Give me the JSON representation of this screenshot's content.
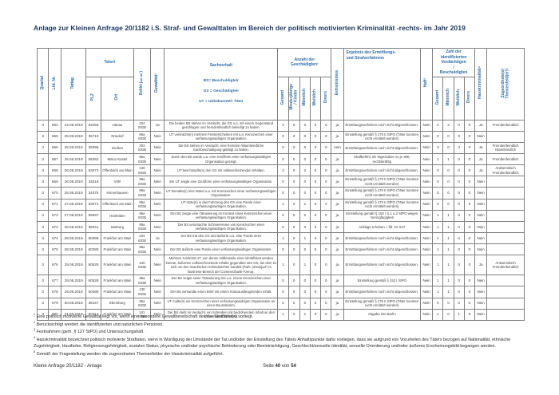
{
  "page": {
    "title": "Anlage zur Kleinen Anfrage 20/1182 i.S. Straf- und Gewalttaten im Bereich der politisch motivierten Kriminalität -rechts- im Jahr 2019",
    "footer": {
      "left": "Kleine Anfrage 20/1182 - Anlage",
      "seite": "Seite",
      "num": "40",
      "von": "von",
      "total": "54"
    }
  },
  "colors": {
    "header_blue": "#2e6da8",
    "title_navy": "#1f3864",
    "body_text": "#3a3a3a",
    "border_gray": "#7f7f7f"
  },
  "table": {
    "headers": {
      "quartal": "Quartal",
      "lfd_nr": "Lfd. Nr.",
      "tattag": "Tattag",
      "tatort": "Tatort",
      "plz": "PLZ",
      "ort": "Ort",
      "delikt": "Delikt (§§)",
      "gewalttat": "Gewalttat¹",
      "sachverhalt": "Sachverhalt",
      "sachverhalt_legend": [
        "BS= Beschuldigte/r",
        "GS = Geschädigte/r",
        "UT = Unbekannte/r Täter"
      ],
      "geschaedigte": "Anzahl der\nGeschädigten²",
      "g_gesamt": "Gesamt",
      "g_minder": "Minderjährige\n/ Kinder",
      "g_maennlich": "Männlich",
      "g_weiblich": "Weiblich",
      "g_divers": "Divers",
      "extremismus": "Extremismus",
      "ergebnis": "Ergebnis des Ermittlungs-\nund Strafverfahrens",
      "haft": "Haft³",
      "verdaechtige": "Zahl der\nidentifizierten\nVerdächtigen\n/\nBeschuldigten",
      "v_gesamt": "Gesamt",
      "v_maennlich": "Männlich",
      "v_weiblich": "Weiblich",
      "v_divers": "Divers",
      "hasskrim": "Hasskriminalität⁴",
      "themenfeld": "Zugeordnete(s)\nThemenfeld(er)⁵"
    },
    "rows": [
      [
        "3",
        "664",
        "24.08.2019",
        "63456",
        "Hanau",
        "224 StGB",
        "Ja",
        "Die beiden BS stehen im Verdacht, die GS u.a. mit einem Gegenstand geschlagen und fremdenfeindlich beleidigt zu haben.",
        "2",
        "0",
        "2",
        "0",
        "0",
        "ja",
        "Ermittlungsverfahren noch nicht abgeschlossen.",
        "Nein",
        "2",
        "2",
        "0",
        "0",
        "Ja",
        "Fremdenfeindlich"
      ],
      [
        "3",
        "665",
        "25.08.2019",
        "35719",
        "Driedorf",
        "86a StGB",
        "Nein",
        "UT verkratzte(n) mehrere Fensterscheiben mit u.a. Kennzeichen einer verfassungswidrigen Organisation.",
        "0",
        "0",
        "0",
        "0",
        "0",
        "ja",
        "Einstellung gemäß § 170 II StPO (Täter konnten nicht ermittelt werden)",
        "Nein",
        "0",
        "0",
        "0",
        "0",
        "Nein",
        ""
      ],
      [
        "3",
        "666",
        "25.08.2019",
        "35396",
        "Gießen",
        "303 StGB",
        "Nein",
        "Die BS stehen im Verdacht, eine fremden-/islamfeindliche Sachbeschädigung getätigt zu haben.",
        "0",
        "0",
        "0",
        "0",
        "0",
        "nein",
        "Ermittlungsverfahren noch nicht abgeschlossen.",
        "Nein",
        "3",
        "0",
        "3",
        "0",
        "Ja",
        "Fremdenfeindlich\nIslamfeindlich"
      ],
      [
        "3",
        "667",
        "25.08.2019",
        "55252",
        "Mainz-Kastel",
        "86a StGB",
        "Nein",
        "Durch den BS wurde u.a. eine Grußform einer verfassungswidrigen Organisation gezeigt.",
        "0",
        "0",
        "0",
        "0",
        "0",
        "ja",
        "Strafbefehl, 60 Tagessätze zu je 30€, rechtskräftig",
        "Nein",
        "1",
        "1",
        "0",
        "0",
        "Ja",
        "Fremdenfeindlich"
      ],
      [
        "3",
        "668",
        "26.08.2019",
        "63073",
        "Offenbach am Main",
        "130 StGB",
        "Nein",
        "UT beschimpfte(n) den GS mit volksverhetzenden Inhalten.",
        "2",
        "0",
        "2",
        "0",
        "0",
        "ja",
        "Ermittlungsverfahren noch nicht abgeschlossen.",
        "Nein",
        "0",
        "0",
        "0",
        "0",
        "Ja",
        "Antisemitisch\nFremdenfeindlich"
      ],
      [
        "3",
        "669",
        "26.08.2019",
        "34516",
        "Vöhl",
        "86a StGB",
        "Nein",
        "Ein UT zeigte eine Grußform einer verfassungswidrigen Organisation.",
        "0",
        "0",
        "0",
        "0",
        "0",
        "ja",
        "Einstellung gemäß § 170 II StPO (Täter konnten nicht ermittelt werden)",
        "Nein",
        "0",
        "0",
        "0",
        "0",
        "Nein",
        ""
      ],
      [
        "3",
        "670",
        "26.08.2019",
        "34376",
        "Immenhausen",
        "86a StGB",
        "Nein",
        "UT bemalte(n) eine Wand u.a. mit Kennzeichen einer verfassungswidrigen Organisation.",
        "0",
        "0",
        "0",
        "0",
        "0",
        "ja",
        "Einstellung gemäß § 170 II StPO (Täter konnten nicht ermittelt werden)",
        "Nein",
        "0",
        "0",
        "0",
        "0",
        "Nein",
        ""
      ],
      [
        "3",
        "671",
        "27.08.2019",
        "63071",
        "Offenbach am Main",
        "86a StGB",
        "Nein",
        "UT ritzte(n) in das Fahrzeug des GS eine Parole einer verfassungswidrigen Organisation.",
        "1",
        "0",
        "1",
        "0",
        "0",
        "ja",
        "Einstellung gemäß § 170 II StPO (Täter konnten nicht ermittelt werden)",
        "Nein",
        "0",
        "0",
        "0",
        "0",
        "Nein",
        ""
      ],
      [
        "3",
        "672",
        "27.08.2019",
        "65597",
        "Hünfelden",
        "86a StGB",
        "Nein",
        "Der BS zeigte eine Tätowierung im Kontext eines Kennzeichen einer verfassungswidrigen Organisation.",
        "0",
        "0",
        "0",
        "0",
        "0",
        "ja",
        "Einstellung gemäß § 153 I S.1 u.2 StPO wegen Geringfügigkeit",
        "Nein",
        "1",
        "1",
        "0",
        "0",
        "Nein",
        ""
      ],
      [
        "3",
        "673",
        "28.08.2019",
        "35041",
        "Marburg",
        "86a StGB",
        "Nein",
        "Der BS verursachte Schmierereien von Kennzeichen einer verfassungswidrigen Organisation.",
        "0",
        "0",
        "0",
        "0",
        "0",
        "ja",
        "Anklage erhoben + lfd. Nr. 647",
        "Nein",
        "1",
        "1",
        "0",
        "0",
        "Nein",
        ""
      ],
      [
        "3",
        "674",
        "28.08.2019",
        "60385",
        "Frankfurt am Main",
        "224 StGB",
        "Ja",
        "Der BS trat den GS und äußerte u.a. eine Parole einer verfassungswidrigen Organisation.",
        "1",
        "0",
        "1",
        "0",
        "0",
        "ja",
        "Ermittlungsverfahren noch nicht abgeschlossen.",
        "Nein",
        "1",
        "1",
        "0",
        "0",
        "Nein",
        ""
      ],
      [
        "3",
        "675",
        "28.08.2019",
        "60385",
        "Frankfurt am Main",
        "86a StGB",
        "Nein",
        "Der BS äußerte eine Parole einer verfassungswidrigen Organisation.",
        "0",
        "0",
        "0",
        "0",
        "0",
        "ja",
        "Ermittlungsverfahren noch nicht abgeschlossen.",
        "Nein",
        "1",
        "1",
        "0",
        "0",
        "Nein",
        ""
      ],
      [
        "3",
        "676",
        "29.08.2019",
        "60528",
        "Frankfurt am Main",
        "130 StGB",
        "Nein",
        "Mehrere zunächst UT, von denen mittlerweile einer identifiziert werden konnte, äußerten volksverhetzende Inhalte gegenüber den GS, bei dem es sich um den israelischen Schiedsrichter handelt (Rufe „Dreckjud“ im Business-Bereich der Commerzbank-Arena).",
        "1",
        "0",
        "1",
        "0",
        "0",
        "ja",
        "Ermittlungsverfahren noch nicht abgeschlossen.",
        "Nein",
        "1",
        "1",
        "0",
        "0",
        "Ja",
        "Antisemitisch\nFremdenfeindlich"
      ],
      [
        "3",
        "677",
        "29.08.2019",
        "60528",
        "Frankfurt am Main",
        "86a StGB",
        "Nein",
        "Der BS zeigte seine Tätowierung mit u.a. einem Kennzeichen einer verfassungswidrigen Organisation.",
        "0",
        "0",
        "0",
        "0",
        "0",
        "ja",
        "Einstellung gemäß § 153 I StPO",
        "Nein",
        "1",
        "1",
        "0",
        "0",
        "Nein",
        ""
      ],
      [
        "3",
        "678",
        "29.08.2019",
        "60489",
        "Frankfurt am Main",
        "130 StGB",
        "Nein",
        "Der BS versandte einen Brief mit einem holocaustleugnenden Inhalt.",
        "0",
        "0",
        "0",
        "0",
        "0",
        "ja",
        "Ermittlungsverfahren noch nicht abgeschlossen.",
        "Nein",
        "1",
        "1",
        "0",
        "0",
        "Nein",
        ""
      ],
      [
        "3",
        "679",
        "30.08.2019",
        "36157",
        "Ebersburg",
        "86a StGB",
        "Nein",
        "UT malte(n) ein Kennzeichen einer verfassungswidrigen Organisation an einen Baumstamm.",
        "0",
        "0",
        "0",
        "0",
        "0",
        "ja",
        "Einstellung gemäß § 170 II StPO (Täter konnten nicht ermittelt werden)",
        "Nein",
        "0",
        "0",
        "0",
        "0",
        "Nein",
        ""
      ],
      [
        "3",
        "680",
        "31.08.2019",
        "60313",
        "Frankfurt am Main",
        "241 StGB",
        "Nein",
        "Der BS steht im Verdacht, ein Schreiben mit bedrohendem Inhalt an den GS versandt zu haben.",
        "1",
        "0",
        "1",
        "0",
        "0",
        "ja",
        "Abgabe StA Berlin",
        "Nein",
        "1",
        "0",
        "1",
        "0",
        "Nein",
        ""
      ]
    ]
  },
  "footnotes": [
    {
      "n": "1",
      "text": "Eine politisch motivierte Gewalttat liegt vor, wenn eine besondere Gewaltbereitschaft des/der Straftäter(s) vorliegt."
    },
    {
      "n": "2",
      "text": "Berücksichtigt werden die identifizierten und natürlichen Personen."
    },
    {
      "n": "3",
      "text": "Festnahmen (gem. § 127 StPO) und Untersuchungshaft."
    },
    {
      "n": "4",
      "text": "Hasskriminalität bezeichnet politisch motivierte Straftaten, wenn in Würdigung der Umstände der Tat und/oder der Einstellung des Täters Anhaltspunkte dafür vorliegen, dass sie aufgrund von Vorurteilen des Täters bezogen auf Nationalität, ethnische Zugehörigkeit, Hautfarbe, Religionszugehörigkeit, sozialen Status, physische und/oder psychische Behinderung oder Beeinträchtigung, Geschlecht/sexuelle Identität, sexuelle Orientierung und/oder äußeres Erscheinungsbild begangen werden."
    },
    {
      "n": "5",
      "text": "Gemäß der Fragestellung werden die zugeordneten Themenfelder der Hasskriminalität aufgeführt."
    }
  ]
}
